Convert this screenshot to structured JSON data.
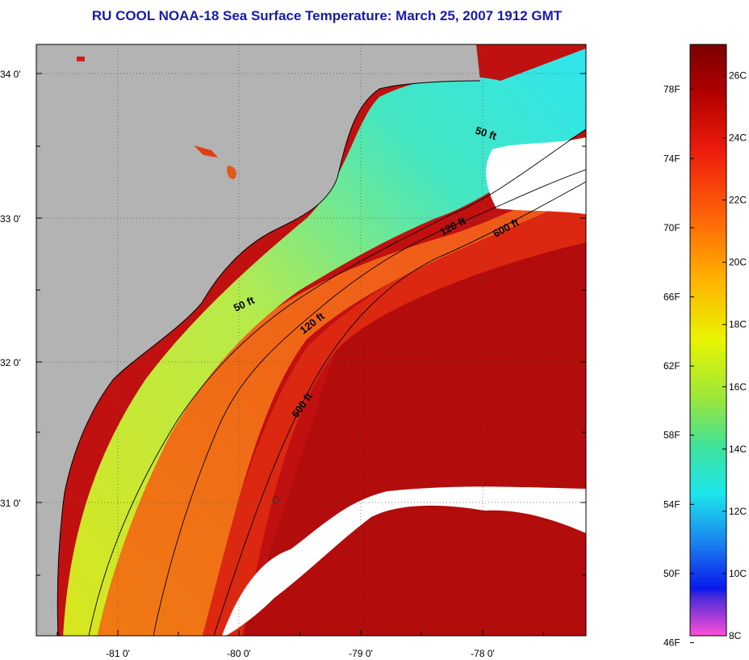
{
  "title": "RU COOL  NOAA-18  Sea Surface Temperature:  March 25, 2007 1912 GMT",
  "map": {
    "lat_ticks": [
      "34 0'",
      "33 0'",
      "32 0'",
      "31 0'"
    ],
    "lon_ticks": [
      "-81 0'",
      "-80 0'",
      "-79 0'",
      "-78 0'"
    ],
    "contours": {
      "c50_upper": "50 ft",
      "c50_lower": "50 ft",
      "c120_upper": "120 ft",
      "c120_lower": "120 ft",
      "c600_upper": "600 ft",
      "c600_lower": "600 ft"
    },
    "colors": {
      "land": "#b3b3b3",
      "cloud": "#ffffff",
      "gulf_stream": "#d60f0f",
      "cold_shelf": "#33e6e0"
    }
  },
  "colorbar": {
    "fahrenheit": [
      "78F",
      "74F",
      "70F",
      "66F",
      "62F",
      "58F",
      "54F",
      "50F",
      "46F"
    ],
    "celsius": [
      "26C",
      "24C",
      "22C",
      "20C",
      "18C",
      "16C",
      "14C",
      "12C",
      "10C",
      "8C"
    ],
    "range_c": [
      8,
      27
    ]
  }
}
